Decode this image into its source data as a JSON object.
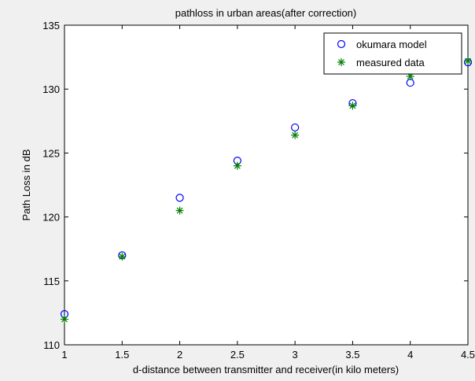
{
  "chart_data": {
    "type": "scatter",
    "title": "pathloss in urban areas(after correction)",
    "xlabel": "d-distance between transmitter and receiver(in kilo meters)",
    "ylabel": "Path Loss in dB",
    "xlim": [
      1,
      4.5
    ],
    "ylim": [
      110,
      135
    ],
    "xticks": [
      "1",
      "1.5",
      "2",
      "2.5",
      "3",
      "3.5",
      "4",
      "4.5"
    ],
    "yticks": [
      "110",
      "115",
      "120",
      "125",
      "130",
      "135"
    ],
    "grid": false,
    "legend": "top-right",
    "series": [
      {
        "name": "okumara model",
        "marker": "circle",
        "color": "#0000ff",
        "x": [
          1,
          1.5,
          2,
          2.5,
          3,
          3.5,
          4,
          4.5
        ],
        "y": [
          112.4,
          117.0,
          121.5,
          124.4,
          127.0,
          128.9,
          130.5,
          132.1
        ]
      },
      {
        "name": "measured data",
        "marker": "asterisk",
        "color": "#008000",
        "x": [
          1,
          1.5,
          2,
          2.5,
          3,
          3.5,
          4,
          4.5
        ],
        "y": [
          112.0,
          116.9,
          120.5,
          124.0,
          126.4,
          128.7,
          131.0,
          132.2
        ]
      }
    ]
  }
}
